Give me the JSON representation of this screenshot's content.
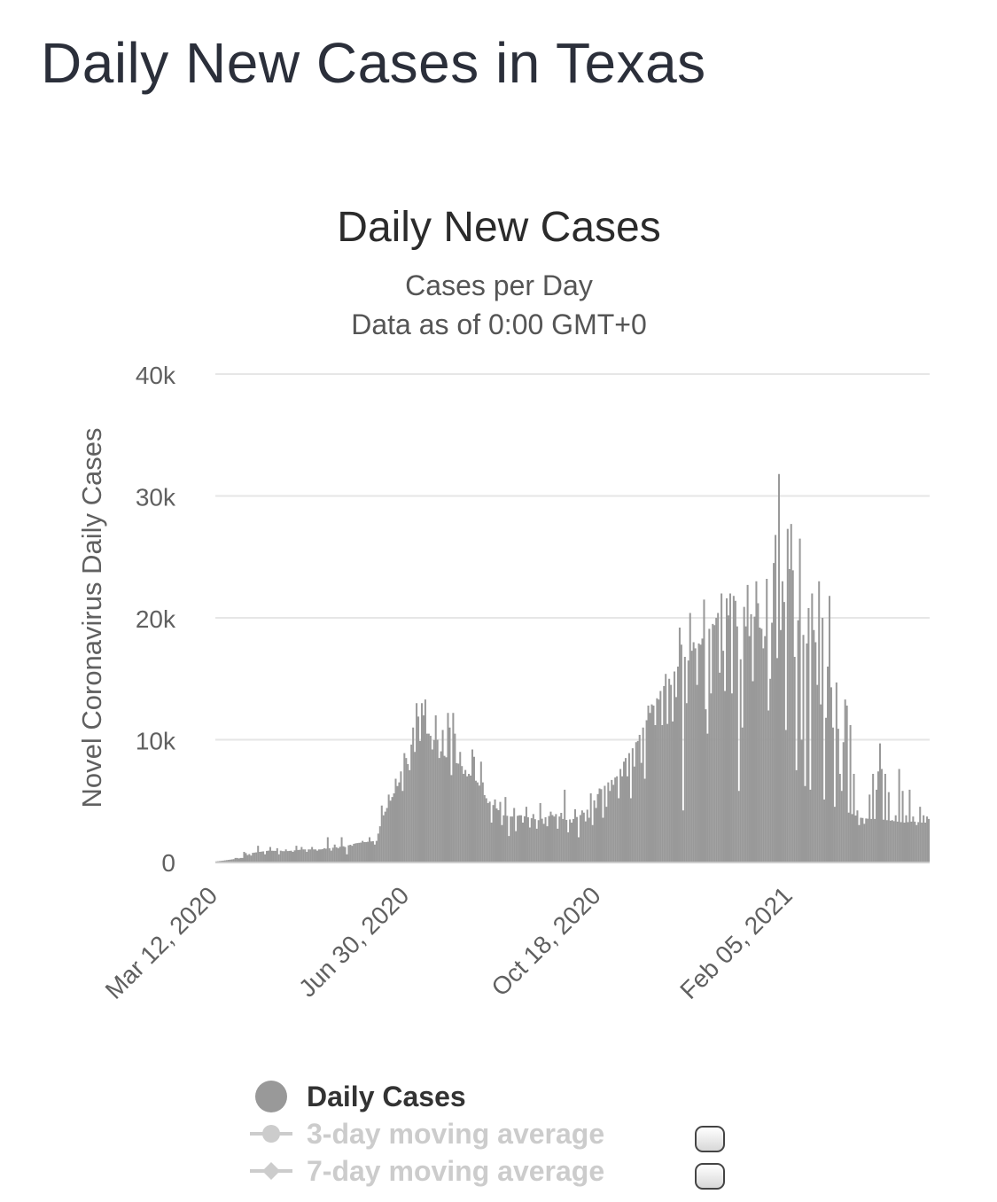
{
  "page": {
    "title": "Daily New Cases in Texas"
  },
  "colors": {
    "bar": "#999999",
    "grid": "#e6e6e6",
    "legend_inactive": "#cccccc"
  },
  "legend": {
    "items": [
      {
        "label": "Daily Cases",
        "active": true,
        "symbol": "circle-icon"
      },
      {
        "label": "3-day moving average",
        "active": false,
        "symbol": "circle-line-icon"
      },
      {
        "label": "7-day moving average",
        "active": false,
        "symbol": "diamond-line-icon"
      }
    ]
  },
  "chart_data": {
    "type": "bar",
    "title": "Daily New Cases",
    "subtitle": [
      "Cases per Day",
      "Data as of 0:00 GMT+0"
    ],
    "ylabel": "Novel Coronavirus Daily Cases",
    "xlabel": "",
    "ylim": [
      0,
      40000
    ],
    "yticks": [
      0,
      10000,
      20000,
      30000,
      40000
    ],
    "ytick_labels": [
      "0",
      "10k",
      "20k",
      "30k",
      "40k"
    ],
    "x_start": "Mar 12, 2020",
    "xtick_labels": [
      "Mar 12, 2020",
      "Jun 30, 2020",
      "Oct 18, 2020",
      "Feb 05, 2021"
    ],
    "xtick_indices": [
      0,
      110,
      220,
      330
    ],
    "legend_position": "bottom",
    "grid": true,
    "series": [
      {
        "name": "Daily Cases",
        "knots": [
          [
            0,
            0
          ],
          [
            10,
            200
          ],
          [
            15,
            300
          ],
          [
            20,
            700
          ],
          [
            30,
            900
          ],
          [
            40,
            850
          ],
          [
            50,
            1000
          ],
          [
            60,
            1000
          ],
          [
            70,
            1200
          ],
          [
            75,
            1300
          ],
          [
            80,
            1500
          ],
          [
            85,
            1600
          ],
          [
            92,
            1700
          ],
          [
            95,
            3500
          ],
          [
            100,
            5000
          ],
          [
            105,
            6500
          ],
          [
            110,
            8000
          ],
          [
            115,
            9500
          ],
          [
            118,
            11000
          ],
          [
            122,
            10500
          ],
          [
            126,
            9800
          ],
          [
            130,
            8800
          ],
          [
            135,
            8200
          ],
          [
            140,
            8000
          ],
          [
            145,
            7200
          ],
          [
            150,
            6500
          ],
          [
            155,
            5200
          ],
          [
            160,
            4500
          ],
          [
            165,
            3800
          ],
          [
            170,
            3700
          ],
          [
            175,
            3800
          ],
          [
            180,
            3600
          ],
          [
            185,
            3400
          ],
          [
            190,
            3700
          ],
          [
            195,
            3900
          ],
          [
            200,
            3400
          ],
          [
            205,
            3500
          ],
          [
            210,
            3900
          ],
          [
            215,
            4500
          ],
          [
            220,
            5800
          ],
          [
            225,
            6500
          ],
          [
            230,
            7000
          ],
          [
            235,
            8500
          ],
          [
            240,
            9500
          ],
          [
            245,
            11000
          ],
          [
            250,
            12500
          ],
          [
            255,
            14000
          ],
          [
            260,
            15000
          ],
          [
            265,
            16000
          ],
          [
            270,
            17000
          ],
          [
            275,
            17500
          ],
          [
            280,
            18500
          ],
          [
            285,
            19500
          ],
          [
            290,
            21000
          ],
          [
            295,
            22000
          ],
          [
            300,
            21500
          ],
          [
            305,
            20500
          ],
          [
            310,
            20000
          ],
          [
            315,
            18500
          ],
          [
            320,
            16000
          ],
          [
            325,
            12000
          ],
          [
            330,
            9000
          ],
          [
            335,
            6500
          ],
          [
            340,
            6000
          ],
          [
            345,
            5500
          ],
          [
            350,
            5000
          ],
          [
            355,
            4500
          ],
          [
            360,
            4200
          ],
          [
            365,
            3900
          ],
          [
            370,
            3600
          ],
          [
            375,
            3500
          ],
          [
            380,
            3500
          ],
          [
            385,
            3400
          ],
          [
            390,
            3300
          ],
          [
            395,
            3200
          ],
          [
            400,
            3300
          ],
          [
            405,
            3200
          ],
          [
            409,
            3200
          ]
        ],
        "overrides": [
          [
            10,
            200
          ],
          [
            11,
            300
          ],
          [
            12,
            300
          ],
          [
            14,
            300
          ],
          [
            16,
            800
          ],
          [
            17,
            700
          ],
          [
            20,
            500
          ],
          [
            24,
            1300
          ],
          [
            28,
            600
          ],
          [
            31,
            1200
          ],
          [
            35,
            1100
          ],
          [
            36,
            600
          ],
          [
            37,
            900
          ],
          [
            40,
            1000
          ],
          [
            44,
            800
          ],
          [
            46,
            1300
          ],
          [
            49,
            1200
          ],
          [
            52,
            800
          ],
          [
            55,
            1200
          ],
          [
            58,
            900
          ],
          [
            62,
            1100
          ],
          [
            64,
            2000
          ],
          [
            66,
            900
          ],
          [
            68,
            1400
          ],
          [
            70,
            1100
          ],
          [
            72,
            2000
          ],
          [
            74,
            1200
          ],
          [
            75,
            600
          ],
          [
            78,
            1300
          ],
          [
            80,
            1500
          ],
          [
            84,
            1700
          ],
          [
            86,
            1600
          ],
          [
            88,
            2000
          ],
          [
            91,
            1400
          ],
          [
            95,
            4600
          ],
          [
            99,
            5500
          ],
          [
            103,
            6800
          ],
          [
            106,
            7400
          ],
          [
            107,
            5800
          ],
          [
            108,
            8900
          ],
          [
            109,
            8500
          ],
          [
            111,
            7500
          ],
          [
            112,
            9600
          ],
          [
            113,
            11000
          ],
          [
            114,
            9000
          ],
          [
            115,
            13000
          ],
          [
            116,
            11900
          ],
          [
            117,
            9900
          ],
          [
            118,
            13000
          ],
          [
            119,
            12000
          ],
          [
            120,
            13300
          ],
          [
            121,
            10500
          ],
          [
            124,
            9200
          ],
          [
            126,
            12000
          ],
          [
            127,
            10000
          ],
          [
            128,
            8500
          ],
          [
            130,
            10800
          ],
          [
            133,
            12200
          ],
          [
            134,
            11000
          ],
          [
            135,
            7100
          ],
          [
            136,
            12200
          ],
          [
            137,
            10500
          ],
          [
            140,
            9000
          ],
          [
            142,
            7200
          ],
          [
            144,
            7000
          ],
          [
            147,
            9200
          ],
          [
            148,
            8600
          ],
          [
            152,
            8200
          ],
          [
            153,
            6500
          ],
          [
            156,
            4800
          ],
          [
            158,
            3200
          ],
          [
            160,
            5100
          ],
          [
            163,
            4900
          ],
          [
            164,
            3000
          ],
          [
            166,
            5300
          ],
          [
            168,
            2100
          ],
          [
            169,
            3700
          ],
          [
            171,
            4400
          ],
          [
            172,
            2500
          ],
          [
            174,
            3800
          ],
          [
            176,
            3200
          ],
          [
            178,
            4500
          ],
          [
            180,
            2800
          ],
          [
            182,
            3900
          ],
          [
            184,
            2700
          ],
          [
            186,
            4800
          ],
          [
            188,
            3100
          ],
          [
            190,
            2900
          ],
          [
            192,
            4100
          ],
          [
            194,
            3700
          ],
          [
            196,
            2700
          ],
          [
            198,
            4000
          ],
          [
            200,
            5900
          ],
          [
            202,
            2400
          ],
          [
            204,
            3200
          ],
          [
            206,
            4300
          ],
          [
            208,
            2000
          ],
          [
            210,
            4200
          ],
          [
            212,
            3300
          ],
          [
            214,
            3600
          ],
          [
            215,
            5600
          ],
          [
            216,
            3000
          ],
          [
            218,
            4400
          ],
          [
            220,
            6000
          ],
          [
            222,
            3600
          ],
          [
            224,
            4500
          ],
          [
            226,
            5800
          ],
          [
            228,
            6300
          ],
          [
            231,
            5200
          ],
          [
            233,
            7000
          ],
          [
            236,
            7000
          ],
          [
            238,
            5200
          ],
          [
            240,
            7800
          ],
          [
            242,
            9900
          ],
          [
            244,
            8100
          ],
          [
            246,
            6800
          ],
          [
            248,
            12800
          ],
          [
            250,
            12900
          ],
          [
            252,
            11200
          ],
          [
            254,
            13300
          ],
          [
            256,
            11200
          ],
          [
            258,
            15400
          ],
          [
            259,
            11300
          ],
          [
            261,
            14500
          ],
          [
            262,
            11500
          ],
          [
            264,
            13500
          ],
          [
            266,
            19200
          ],
          [
            267,
            17800
          ],
          [
            268,
            4200
          ],
          [
            270,
            13000
          ],
          [
            271,
            16500
          ],
          [
            272,
            20400
          ],
          [
            274,
            18000
          ],
          [
            276,
            14500
          ],
          [
            278,
            17800
          ],
          [
            280,
            21500
          ],
          [
            281,
            12500
          ],
          [
            282,
            10500
          ],
          [
            284,
            13800
          ],
          [
            286,
            19400
          ],
          [
            287,
            20000
          ],
          [
            289,
            15500
          ],
          [
            290,
            22000
          ],
          [
            291,
            17300
          ],
          [
            292,
            14000
          ],
          [
            294,
            20200
          ],
          [
            296,
            13800
          ],
          [
            298,
            21400
          ],
          [
            299,
            19300
          ],
          [
            300,
            5800
          ],
          [
            301,
            16600
          ],
          [
            302,
            11000
          ],
          [
            304,
            19300
          ],
          [
            305,
            22700
          ],
          [
            306,
            18500
          ],
          [
            308,
            14800
          ],
          [
            310,
            23000
          ],
          [
            311,
            21200
          ],
          [
            312,
            19200
          ],
          [
            314,
            17500
          ],
          [
            316,
            23200
          ],
          [
            317,
            12400
          ],
          [
            318,
            15000
          ],
          [
            319,
            19600
          ],
          [
            320,
            24500
          ],
          [
            321,
            26800
          ],
          [
            322,
            16700
          ],
          [
            323,
            31800
          ],
          [
            324,
            19000
          ],
          [
            325,
            23000
          ],
          [
            326,
            21300
          ],
          [
            328,
            27300
          ],
          [
            329,
            24000
          ],
          [
            330,
            27700
          ],
          [
            331,
            23900
          ],
          [
            332,
            16800
          ],
          [
            334,
            19800
          ],
          [
            335,
            26500
          ],
          [
            336,
            10000
          ],
          [
            337,
            18600
          ],
          [
            339,
            17900
          ],
          [
            340,
            20800
          ],
          [
            342,
            22000
          ],
          [
            343,
            19000
          ],
          [
            344,
            18000
          ],
          [
            345,
            14500
          ],
          [
            346,
            23000
          ],
          [
            347,
            12900
          ],
          [
            348,
            20000
          ],
          [
            350,
            11800
          ],
          [
            351,
            16000
          ],
          [
            352,
            21800
          ],
          [
            353,
            14300
          ],
          [
            354,
            11000
          ],
          [
            356,
            14700
          ],
          [
            357,
            10900
          ],
          [
            358,
            7200
          ],
          [
            359,
            5800
          ],
          [
            360,
            9800
          ],
          [
            361,
            13300
          ],
          [
            362,
            12800
          ],
          [
            364,
            11200
          ],
          [
            366,
            7200
          ],
          [
            368,
            4200
          ],
          [
            369,
            3000
          ],
          [
            372,
            3100
          ],
          [
            375,
            5500
          ],
          [
            377,
            7200
          ],
          [
            379,
            5900
          ],
          [
            380,
            7400
          ],
          [
            381,
            9700
          ],
          [
            382,
            7600
          ],
          [
            384,
            7200
          ],
          [
            386,
            5700
          ],
          [
            388,
            3400
          ],
          [
            390,
            3800
          ],
          [
            392,
            7600
          ],
          [
            394,
            5800
          ],
          [
            396,
            3800
          ],
          [
            398,
            5900
          ],
          [
            400,
            3700
          ],
          [
            402,
            3000
          ],
          [
            404,
            4500
          ],
          [
            406,
            3800
          ],
          [
            408,
            3700
          ],
          [
            409,
            3500
          ]
        ]
      }
    ]
  }
}
